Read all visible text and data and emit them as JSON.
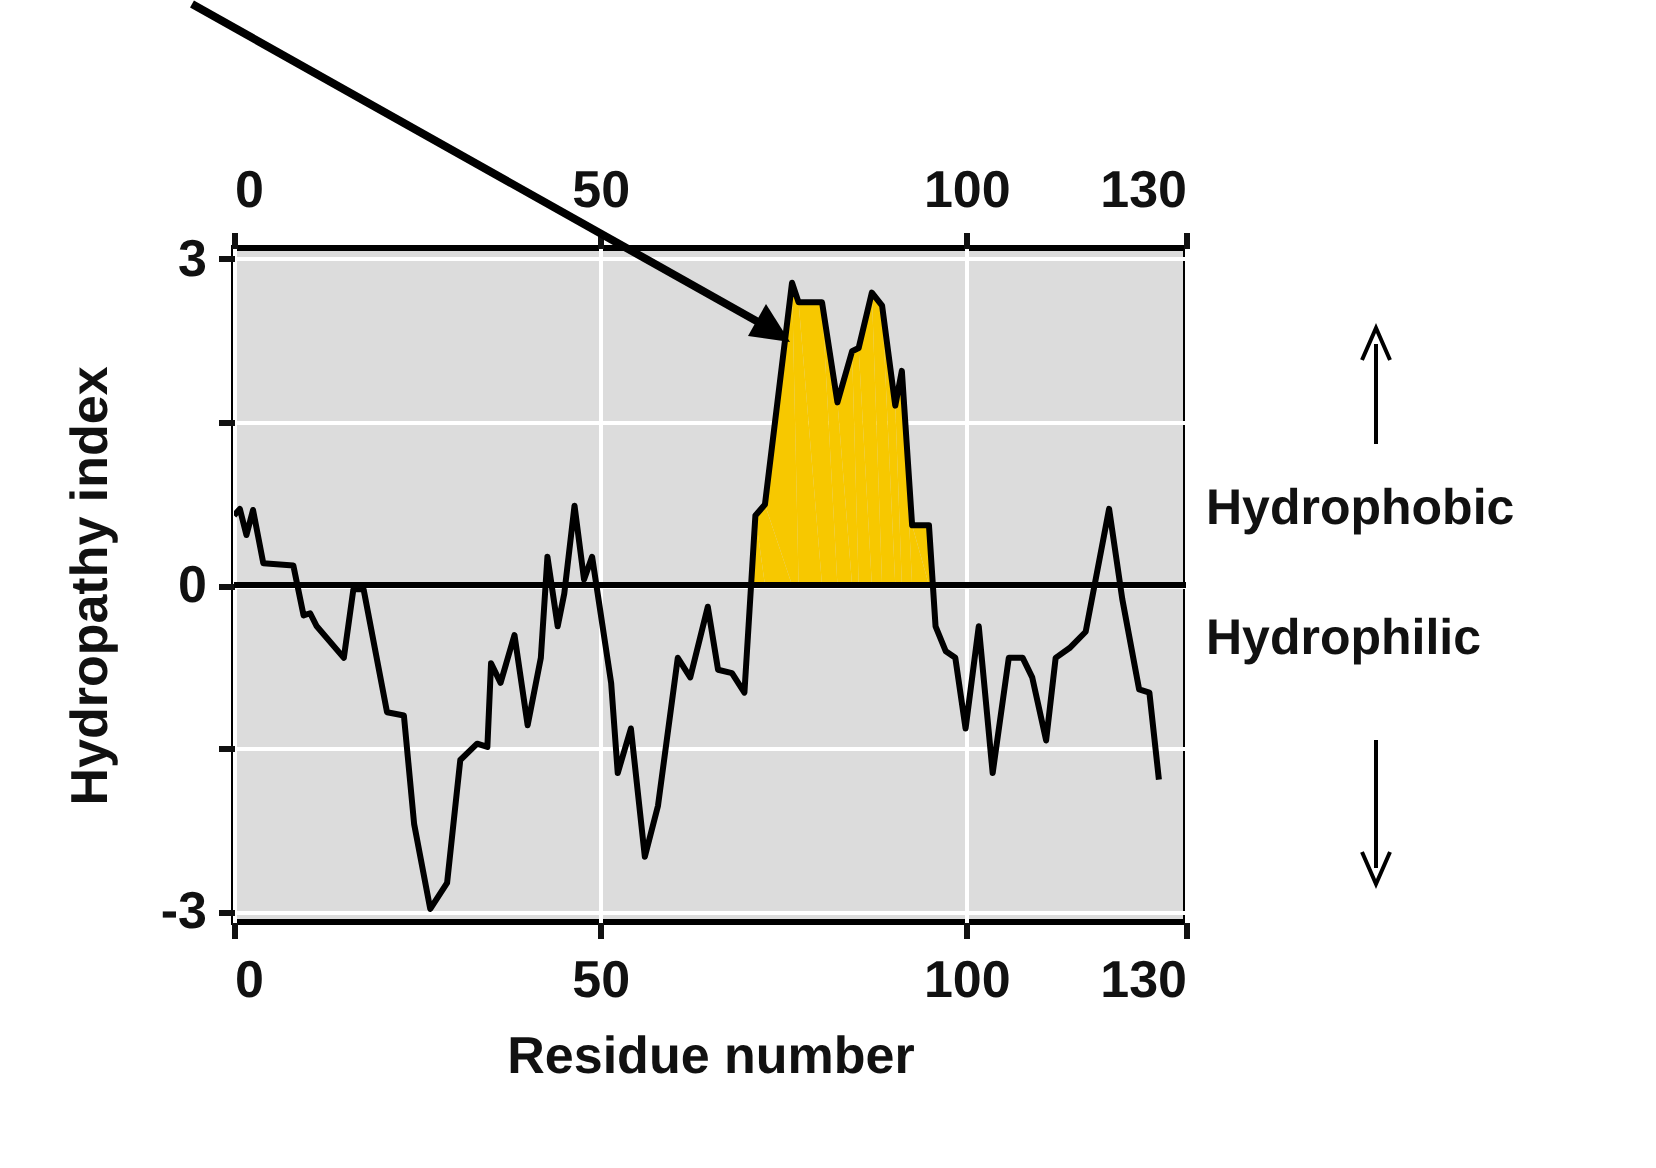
{
  "chart_data": {
    "type": "line",
    "xlabel": "Residue number",
    "ylabel": "Hydropathy index",
    "xlim": [
      0,
      130
    ],
    "xticks": [
      0,
      50,
      100,
      130
    ],
    "x2lim": [
      0,
      130
    ],
    "x2ticks": [
      0,
      50,
      100,
      130
    ],
    "ylim": [
      -3.1,
      3.1
    ],
    "yticks": [
      3,
      {
        "value": 1.5,
        "label": null
      },
      0,
      {
        "value": -1.5,
        "label": null
      },
      -3
    ],
    "grid": true,
    "series": [
      {
        "type": "area",
        "color": "#f7c800",
        "x": [
          70.6,
          71.2,
          72.5,
          76.2,
          77.1,
          80.3,
          82.4,
          84.4,
          85.3,
          87.1,
          88.5,
          90.3,
          91.2,
          92.6,
          94.9,
          95.5
        ],
        "values": [
          0,
          0.64,
          0.74,
          2.78,
          2.6,
          2.6,
          1.68,
          2.15,
          2.18,
          2.69,
          2.57,
          1.65,
          1.97,
          0.55,
          0.55,
          0
        ]
      },
      {
        "color": "#000000",
        "x": [
          0,
          0.8,
          1.7,
          2.6,
          4,
          8.1,
          9.5,
          10.4,
          11.3,
          15,
          16.3,
          17.7,
          20.9,
          23.2,
          24.6,
          26.8,
          29.1,
          30.9,
          33.2,
          34.6,
          35.1,
          36.4,
          38.3,
          40.1,
          41.9,
          42.8,
          44.2,
          45.1,
          46.5,
          47.8,
          48.9,
          51.5,
          52.4,
          54.2,
          56.1,
          57.9,
          60.6,
          62.3,
          64.7,
          66.1,
          68,
          69.7,
          71.2,
          72.5,
          76.2,
          77.1,
          80.3,
          82.4,
          84.4,
          85.3,
          87.1,
          88.5,
          90.3,
          91.2,
          92.6,
          94.9,
          95.8,
          97.2,
          98.5,
          99.9,
          101.7,
          103.6,
          105.8,
          107.7,
          109,
          110.9,
          112.2,
          114.1,
          116.3,
          119.5,
          121.3,
          123.6,
          125,
          126.3
        ],
        "values": [
          0.64,
          0.7,
          0.46,
          0.69,
          0.2,
          0.18,
          -0.28,
          -0.26,
          -0.38,
          -0.67,
          -0.04,
          -0.04,
          -1.17,
          -1.2,
          -2.2,
          -2.98,
          -2.74,
          -1.61,
          -1.46,
          -1.49,
          -0.72,
          -0.9,
          -0.46,
          -1.29,
          -0.67,
          0.26,
          -0.38,
          -0.08,
          0.73,
          0.05,
          0.26,
          -0.9,
          -1.73,
          -1.32,
          -2.5,
          -2.03,
          -0.67,
          -0.85,
          -0.2,
          -0.78,
          -0.81,
          -0.99,
          0.64,
          0.74,
          2.78,
          2.6,
          2.6,
          1.68,
          2.15,
          2.18,
          2.69,
          2.57,
          1.65,
          1.97,
          0.55,
          0.55,
          -0.38,
          -0.61,
          -0.67,
          -1.32,
          -0.38,
          -1.73,
          -0.67,
          -0.67,
          -0.85,
          -1.43,
          -0.67,
          -0.58,
          -0.43,
          0.7,
          -0.13,
          -0.96,
          -0.99,
          -1.79
        ]
      }
    ],
    "ref_lines": [
      {
        "axis": "y",
        "value": 0,
        "color": "#000000"
      }
    ],
    "annotations": [
      "Hydrophobic",
      "Hydrophilic"
    ]
  }
}
